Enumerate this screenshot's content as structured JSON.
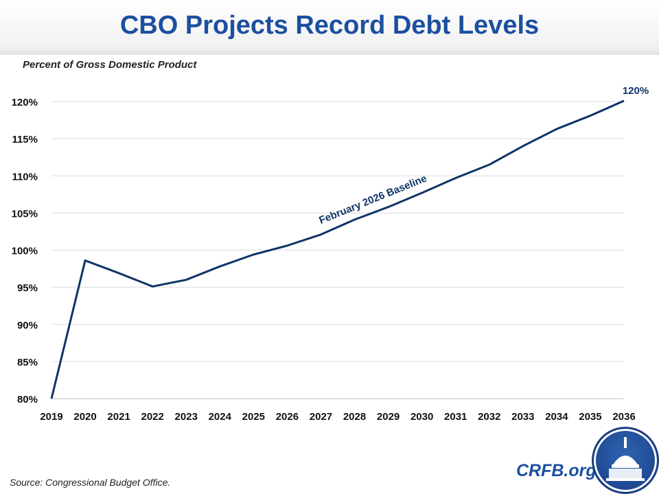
{
  "header": {
    "title": "CBO Projects Record Debt Levels"
  },
  "footer": {
    "source": "Source: Congressional Budget Office.",
    "brand": "CRFB.org",
    "logo": "CRFB capitol dome logo"
  },
  "chart_data": {
    "type": "line",
    "title": "CBO Projects Record Debt Levels",
    "ylabel": "Percent of Gross Domestic Product",
    "xlabel": "",
    "x": [
      2019,
      2020,
      2021,
      2022,
      2023,
      2024,
      2025,
      2026,
      2027,
      2028,
      2029,
      2030,
      2031,
      2032,
      2033,
      2034,
      2035,
      2036
    ],
    "series": [
      {
        "name": "February 2026 Baseline",
        "values": [
          80,
          98.6,
          96.9,
          95.1,
          96.0,
          97.8,
          99.4,
          100.6,
          102.1,
          104.1,
          105.8,
          107.7,
          109.7,
          111.5,
          114.0,
          116.3,
          118.1,
          120.1
        ],
        "color": "#0e3466"
      }
    ],
    "ylim": [
      80,
      120
    ],
    "yticks": [
      "80%",
      "85%",
      "90%",
      "95%",
      "100%",
      "105%",
      "110%",
      "115%",
      "120%"
    ],
    "grid": true,
    "annotations": {
      "end_label": "120%",
      "series_label": "February 2026 Baseline"
    }
  }
}
